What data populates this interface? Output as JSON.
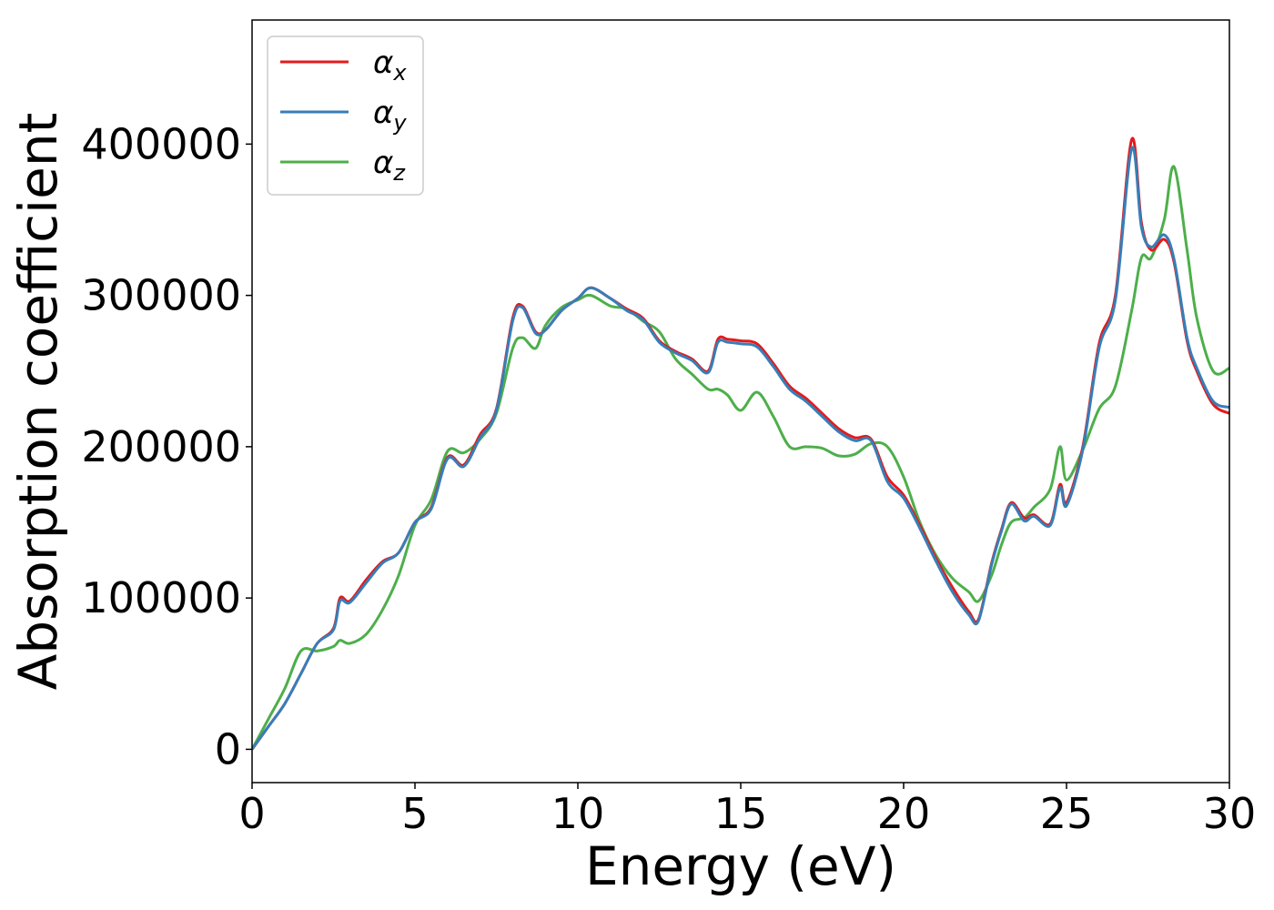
{
  "chart_data": {
    "type": "line",
    "title": "",
    "xlabel": "Energy (eV)",
    "ylabel": "Absorption coefficient",
    "xlim": [
      0,
      30
    ],
    "ylim": [
      -22000,
      482000
    ],
    "xticks": [
      0,
      5,
      10,
      15,
      20,
      25,
      30
    ],
    "yticks": [
      0,
      100000,
      200000,
      300000,
      400000
    ],
    "xtick_labels": [
      "0",
      "5",
      "10",
      "15",
      "20",
      "25",
      "30"
    ],
    "ytick_labels": [
      "0",
      "100000",
      "200000",
      "300000",
      "400000"
    ],
    "grid": false,
    "legend_position": "top-left",
    "x": [
      0,
      0.5,
      1,
      1.5,
      2,
      2.5,
      2.7,
      3,
      3.5,
      4,
      4.5,
      5,
      5.5,
      6,
      6.5,
      7,
      7.5,
      8,
      8.3,
      8.7,
      9,
      9.5,
      10,
      10.4,
      11,
      11.5,
      12,
      12.5,
      13,
      13.5,
      14,
      14.3,
      14.6,
      15,
      15.5,
      16,
      16.5,
      17,
      17.5,
      18,
      18.5,
      19,
      19.5,
      20,
      20.5,
      21,
      21.5,
      22,
      22.3,
      22.7,
      23,
      23.3,
      23.7,
      24,
      24.5,
      24.8,
      25,
      25.5,
      26,
      26.5,
      27,
      27.3,
      27.6,
      28,
      28.3,
      28.7,
      29,
      29.5,
      30
    ],
    "series": [
      {
        "name": "α_x",
        "label_main": "α",
        "label_sub": "x",
        "color": "#e41a1c",
        "values": [
          0,
          15000,
          30000,
          50000,
          70000,
          80000,
          100000,
          98000,
          112000,
          124000,
          130000,
          150000,
          160000,
          193000,
          188000,
          208000,
          225000,
          285000,
          293000,
          276000,
          277000,
          290000,
          298000,
          305000,
          298000,
          291000,
          285000,
          270000,
          263000,
          258000,
          250000,
          271000,
          271000,
          270000,
          268000,
          255000,
          240000,
          232000,
          222000,
          212000,
          206000,
          205000,
          180000,
          168000,
          148000,
          126000,
          107000,
          91000,
          86000,
          123000,
          145000,
          163000,
          153000,
          155000,
          149000,
          175000,
          163000,
          200000,
          268000,
          300000,
          403000,
          348000,
          330000,
          337000,
          322000,
          270000,
          250000,
          228000,
          222000
        ]
      },
      {
        "name": "α_y",
        "label_main": "α",
        "label_sub": "y",
        "color": "#377eb8",
        "values": [
          0,
          15000,
          30000,
          50000,
          70000,
          79000,
          98000,
          97000,
          110000,
          123000,
          130000,
          150000,
          159000,
          192000,
          187000,
          206000,
          224000,
          283000,
          292000,
          275000,
          277000,
          290000,
          298000,
          305000,
          298000,
          290000,
          284000,
          269000,
          262000,
          257000,
          249000,
          269000,
          269000,
          268000,
          266000,
          253000,
          238000,
          230000,
          220000,
          210000,
          204000,
          204000,
          177000,
          166000,
          146000,
          124000,
          104000,
          89000,
          85000,
          122000,
          144000,
          162000,
          151000,
          154000,
          148000,
          173000,
          161000,
          198000,
          265000,
          297000,
          397000,
          345000,
          332000,
          340000,
          324000,
          272000,
          252000,
          230000,
          226000
        ]
      },
      {
        "name": "α_z",
        "label_main": "α",
        "label_sub": "z",
        "color": "#4daf4a",
        "values": [
          0,
          20000,
          40000,
          65000,
          65000,
          68000,
          72000,
          70000,
          76000,
          92000,
          115000,
          148000,
          165000,
          197000,
          196000,
          205000,
          222000,
          265000,
          272000,
          265000,
          280000,
          292000,
          297000,
          300000,
          293000,
          291000,
          283000,
          276000,
          258000,
          248000,
          238000,
          238000,
          234000,
          224000,
          236000,
          220000,
          200000,
          200000,
          199000,
          194000,
          195000,
          202000,
          200000,
          180000,
          150000,
          128000,
          113000,
          104000,
          98000,
          115000,
          135000,
          150000,
          153000,
          160000,
          172000,
          200000,
          178000,
          198000,
          225000,
          240000,
          290000,
          325000,
          325000,
          350000,
          385000,
          330000,
          285000,
          250000,
          252000
        ]
      }
    ]
  }
}
